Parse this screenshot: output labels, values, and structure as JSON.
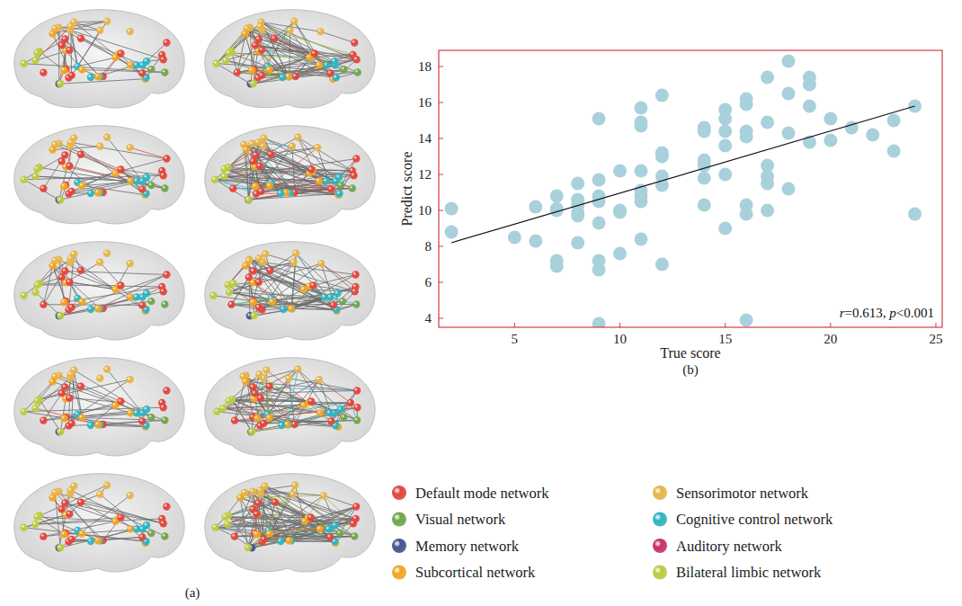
{
  "chart_data": {
    "type": "scatter",
    "panel_label": "(b)",
    "x_label": "True score",
    "y_label": "Predict score",
    "annotation": "r=0.613, p<0.001",
    "color": "#a9d1dc",
    "marker": "circle",
    "xlim": [
      1.4,
      25.3
    ],
    "xticks": [
      5,
      10,
      15,
      20,
      25
    ],
    "ylim": [
      3.5,
      18.9
    ],
    "yticks": [
      4,
      6,
      8,
      10,
      12,
      14,
      16,
      18
    ],
    "x": [
      2,
      2,
      5,
      6,
      6,
      7,
      7,
      7,
      7,
      7,
      8,
      8,
      8,
      8,
      8,
      8,
      9,
      9,
      9,
      9,
      9,
      9,
      9,
      9,
      10,
      10,
      10,
      10,
      11,
      11,
      11,
      11,
      11,
      11,
      11,
      11,
      12,
      12,
      12,
      12,
      12,
      12,
      14,
      14,
      14,
      14,
      14,
      14,
      15,
      15,
      15,
      15,
      15,
      15,
      16,
      16,
      16,
      16,
      16,
      16,
      16,
      17,
      17,
      17,
      17,
      17,
      17,
      18,
      18,
      18,
      18,
      19,
      19,
      19,
      19,
      20,
      20,
      21,
      22,
      23,
      23,
      24,
      24
    ],
    "values": [
      10.1,
      8.8,
      8.5,
      10.2,
      8.3,
      10.8,
      10.1,
      10.0,
      7.2,
      6.9,
      11.5,
      10.6,
      10.3,
      9.9,
      9.7,
      8.2,
      15.1,
      11.7,
      10.8,
      10.5,
      9.3,
      7.2,
      6.7,
      3.7,
      12.2,
      10.0,
      9.9,
      7.6,
      15.7,
      14.9,
      14.7,
      12.2,
      11.1,
      10.8,
      10.5,
      8.4,
      16.4,
      13.2,
      13.0,
      11.9,
      11.4,
      7.0,
      14.6,
      14.4,
      12.8,
      12.5,
      11.8,
      10.3,
      15.6,
      15.1,
      14.4,
      13.6,
      12.0,
      9.0,
      16.2,
      15.9,
      14.4,
      14.1,
      10.3,
      9.8,
      3.9,
      17.4,
      14.9,
      12.5,
      11.9,
      11.5,
      10.0,
      18.3,
      16.5,
      14.3,
      11.2,
      17.4,
      17.0,
      15.8,
      13.8,
      15.1,
      13.9,
      14.6,
      14.2,
      15.0,
      13.3,
      15.8,
      9.8
    ],
    "trend_line": {
      "x": [
        2,
        24
      ],
      "values": [
        8.2,
        15.8
      ]
    }
  },
  "brain_panel": {
    "label": "(a)",
    "networks": [
      {
        "name": "Default mode network",
        "color": "#e2463c"
      },
      {
        "name": "Sensorimotor network",
        "color": "#e6b449"
      },
      {
        "name": "Visual network",
        "color": "#6fa64e"
      },
      {
        "name": "Cognitive control network",
        "color": "#2fb4c2"
      },
      {
        "name": "Memory network",
        "color": "#47558f"
      },
      {
        "name": "Auditory network",
        "color": "#c7316b"
      },
      {
        "name": "Subcortical network",
        "color": "#f0a624"
      },
      {
        "name": "Bilateral limbic network",
        "color": "#bccb3f"
      }
    ]
  }
}
